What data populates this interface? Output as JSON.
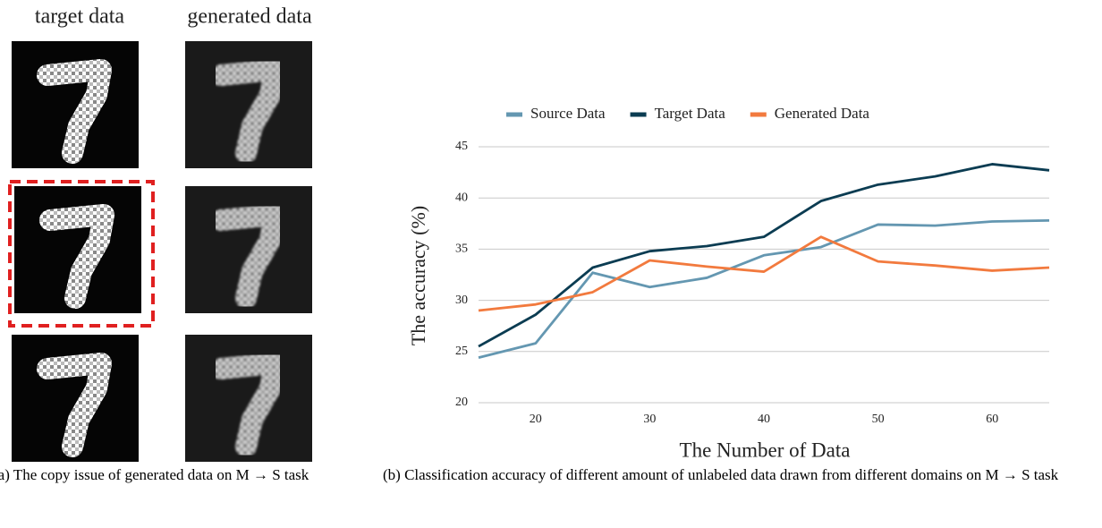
{
  "panel_a": {
    "column_titles": [
      "target data",
      "generated data"
    ],
    "caption": "(a) The copy issue of generated data on M → S task"
  },
  "chart_data": {
    "type": "line",
    "ylabel": "The accuracy (%)",
    "xlabel": "The Number of Data",
    "caption": "(b) Classification accuracy of different amount of unlabeled data drawn from different domains on M → S task",
    "x": [
      15,
      20,
      25,
      30,
      35,
      40,
      45,
      50,
      55,
      60,
      65
    ],
    "series": [
      {
        "name": "Source Data",
        "color": "#6497b1",
        "values": [
          24.4,
          25.8,
          32.7,
          31.3,
          32.2,
          34.4,
          35.2,
          37.4,
          37.3,
          37.7,
          37.8
        ]
      },
      {
        "name": "Target Data",
        "color": "#0b3c52",
        "values": [
          25.5,
          28.6,
          33.2,
          34.8,
          35.3,
          36.2,
          39.7,
          41.3,
          42.1,
          43.3,
          42.7
        ]
      },
      {
        "name": "Generated Data",
        "color": "#f27a3e",
        "values": [
          29.0,
          29.6,
          30.8,
          33.9,
          33.3,
          32.8,
          36.2,
          33.8,
          33.4,
          32.9,
          33.2
        ]
      }
    ],
    "xlim": [
      15,
      65
    ],
    "xticks": [
      20,
      30,
      40,
      50,
      60
    ],
    "ylim": [
      20,
      45
    ],
    "yticks": [
      20,
      25,
      30,
      35,
      40,
      45
    ],
    "grid": true,
    "legend": "top"
  }
}
